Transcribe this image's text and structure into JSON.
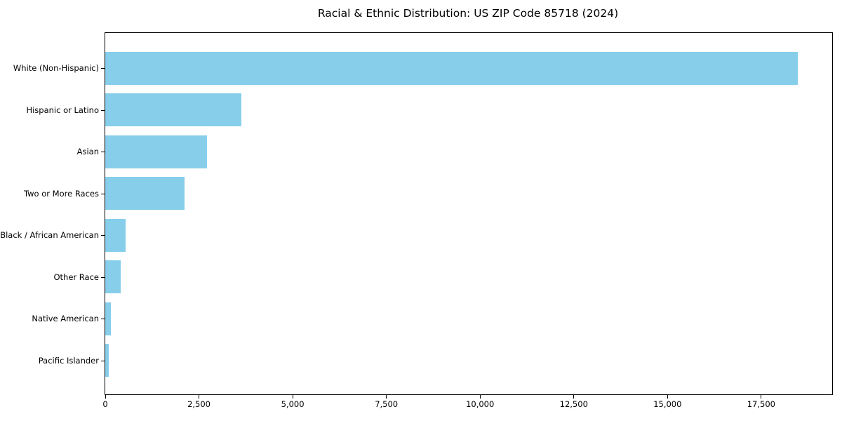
{
  "title": "Racial & Ethnic Distribution: US ZIP Code 85718 (2024)",
  "chart_data": {
    "type": "bar",
    "orientation": "horizontal",
    "title": "Racial & Ethnic Distribution: US ZIP Code 85718 (2024)",
    "categories": [
      "White (Non-Hispanic)",
      "Hispanic or Latino",
      "Asian",
      "Two or More Races",
      "Black / African American",
      "Other Race",
      "Native American",
      "Pacific Islander"
    ],
    "values": [
      18470,
      3640,
      2720,
      2110,
      540,
      410,
      150,
      90
    ],
    "bar_color": "#87CEEB",
    "xlabel": "",
    "ylabel": "",
    "xlim": [
      0,
      19393
    ],
    "x_tick_values": [
      0,
      2500,
      5000,
      7500,
      10000,
      12500,
      15000,
      17500
    ],
    "x_tick_labels": [
      "0",
      "2,500",
      "5,000",
      "7,500",
      "10,000",
      "12,500",
      "15,000",
      "17,500"
    ],
    "grid": false,
    "legend": false,
    "sorted": "descending"
  }
}
